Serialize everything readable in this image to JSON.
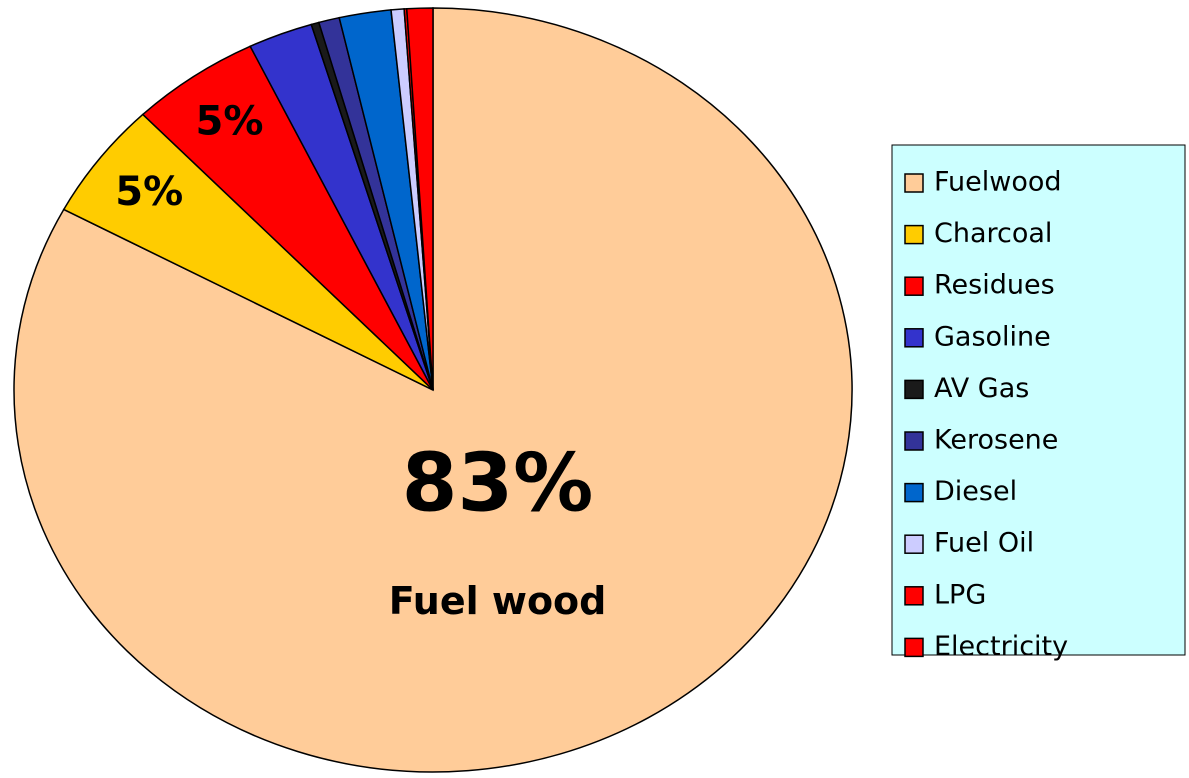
{
  "chart_data": {
    "type": "pie",
    "categories": [
      "Fuelwood",
      "Charcoal",
      "Residues",
      "Gasoline",
      "AV Gas",
      "Kerosene",
      "Diesel",
      "Fuel Oil",
      "LPG",
      "Electricity"
    ],
    "values": [
      83,
      5,
      5,
      2.5,
      0.3,
      0.8,
      2,
      0.5,
      0.1,
      1
    ],
    "value_labels": [
      "83%",
      "5%",
      "5%",
      null,
      null,
      null,
      null,
      null,
      null,
      null
    ],
    "colors": [
      "#ffcc99",
      "#ffcc00",
      "#ff0000",
      "#3333cc",
      "#1a1a1a",
      "#333399",
      "#0066cc",
      "#ccccff",
      "#ff0000",
      "#ff0000"
    ],
    "annotations": [
      "Fuel wood"
    ],
    "legend": "right"
  }
}
